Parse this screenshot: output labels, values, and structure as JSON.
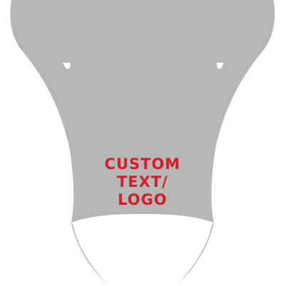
{
  "graphic": {
    "fill_color": "#b6b6b6",
    "background_color": "#ffffff",
    "text_color": "#d21e28",
    "text_lines": [
      "CUSTOM",
      "TEXT/",
      "LOGO"
    ]
  }
}
